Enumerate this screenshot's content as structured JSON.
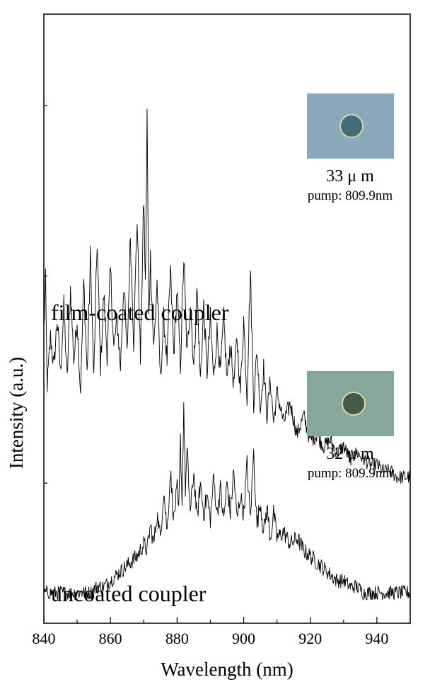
{
  "chart_data": {
    "type": "line",
    "xlabel": "Wavelength (nm)",
    "ylabel": "Intensity (a.u.)",
    "xlim": [
      840,
      950
    ],
    "xticks": [
      840,
      860,
      880,
      900,
      920,
      940
    ],
    "y_tick_labels_shown": false,
    "grid": false,
    "series": [
      {
        "name": "film-coated coupler",
        "inset": {
          "size": "33 μ m",
          "pump": "pump: 809.9nm",
          "microscope_color": "#8aa9bd",
          "disk_color": "#3f6f7a"
        },
        "points": [
          [
            840,
            0.48
          ],
          [
            840.5,
            0.56
          ],
          [
            841,
            0.39
          ],
          [
            842,
            0.47
          ],
          [
            843,
            0.42
          ],
          [
            844,
            0.5
          ],
          [
            845,
            0.41
          ],
          [
            846,
            0.52
          ],
          [
            847,
            0.4
          ],
          [
            848,
            0.55
          ],
          [
            849,
            0.43
          ],
          [
            850,
            0.5
          ],
          [
            851,
            0.38
          ],
          [
            852,
            0.56
          ],
          [
            853,
            0.41
          ],
          [
            854,
            0.6
          ],
          [
            855,
            0.4
          ],
          [
            856,
            0.63
          ],
          [
            857,
            0.42
          ],
          [
            858,
            0.54
          ],
          [
            859,
            0.44
          ],
          [
            860,
            0.58
          ],
          [
            861,
            0.45
          ],
          [
            862,
            0.5
          ],
          [
            863,
            0.42
          ],
          [
            864,
            0.56
          ],
          [
            865,
            0.44
          ],
          [
            866,
            0.64
          ],
          [
            867,
            0.46
          ],
          [
            868,
            0.67
          ],
          [
            869,
            0.43
          ],
          [
            870,
            0.7
          ],
          [
            870.5,
            0.55
          ],
          [
            871,
            0.83
          ],
          [
            871.5,
            0.5
          ],
          [
            872,
            0.6
          ],
          [
            873,
            0.45
          ],
          [
            874,
            0.56
          ],
          [
            875,
            0.4
          ],
          [
            876,
            0.5
          ],
          [
            877,
            0.43
          ],
          [
            878,
            0.58
          ],
          [
            879,
            0.44
          ],
          [
            880,
            0.55
          ],
          [
            881,
            0.42
          ],
          [
            882,
            0.6
          ],
          [
            883,
            0.44
          ],
          [
            884,
            0.53
          ],
          [
            885,
            0.42
          ],
          [
            886,
            0.55
          ],
          [
            887,
            0.4
          ],
          [
            888,
            0.52
          ],
          [
            889,
            0.41
          ],
          [
            890,
            0.5
          ],
          [
            891,
            0.4
          ],
          [
            892,
            0.48
          ],
          [
            893,
            0.41
          ],
          [
            894,
            0.5
          ],
          [
            895,
            0.4
          ],
          [
            896,
            0.46
          ],
          [
            897,
            0.39
          ],
          [
            898,
            0.47
          ],
          [
            899,
            0.38
          ],
          [
            900,
            0.5
          ],
          [
            901,
            0.37
          ],
          [
            902,
            0.58
          ],
          [
            903,
            0.36
          ],
          [
            904,
            0.45
          ],
          [
            905,
            0.35
          ],
          [
            906,
            0.42
          ],
          [
            907,
            0.34
          ],
          [
            908,
            0.4
          ],
          [
            909,
            0.33
          ],
          [
            910,
            0.38
          ],
          [
            912,
            0.33
          ],
          [
            914,
            0.36
          ],
          [
            916,
            0.31
          ],
          [
            918,
            0.34
          ],
          [
            920,
            0.3
          ],
          [
            922,
            0.31
          ],
          [
            924,
            0.29
          ],
          [
            926,
            0.3
          ],
          [
            928,
            0.28
          ],
          [
            930,
            0.29
          ],
          [
            932,
            0.27
          ],
          [
            934,
            0.28
          ],
          [
            936,
            0.27
          ],
          [
            938,
            0.26
          ],
          [
            940,
            0.26
          ],
          [
            942,
            0.25
          ],
          [
            944,
            0.25
          ],
          [
            946,
            0.24
          ],
          [
            948,
            0.24
          ],
          [
            950,
            0.24
          ]
        ]
      },
      {
        "name": "uncoated coupler",
        "inset": {
          "size": "32 μ m",
          "pump": "pump: 809.9nm",
          "microscope_color": "#86a89a",
          "disk_color": "#445a46"
        },
        "points": [
          [
            840,
            0.05
          ],
          [
            842,
            0.05
          ],
          [
            844,
            0.05
          ],
          [
            846,
            0.05
          ],
          [
            848,
            0.05
          ],
          [
            850,
            0.05
          ],
          [
            852,
            0.05
          ],
          [
            854,
            0.05
          ],
          [
            856,
            0.06
          ],
          [
            858,
            0.06
          ],
          [
            860,
            0.07
          ],
          [
            862,
            0.08
          ],
          [
            864,
            0.09
          ],
          [
            866,
            0.1
          ],
          [
            868,
            0.11
          ],
          [
            870,
            0.13
          ],
          [
            871,
            0.12
          ],
          [
            872,
            0.16
          ],
          [
            873,
            0.13
          ],
          [
            874,
            0.18
          ],
          [
            875,
            0.14
          ],
          [
            876,
            0.22
          ],
          [
            877,
            0.15
          ],
          [
            878,
            0.25
          ],
          [
            879,
            0.17
          ],
          [
            880,
            0.22
          ],
          [
            880.5,
            0.18
          ],
          [
            881,
            0.3
          ],
          [
            881.5,
            0.2
          ],
          [
            882,
            0.36
          ],
          [
            882.5,
            0.22
          ],
          [
            883,
            0.28
          ],
          [
            884,
            0.18
          ],
          [
            885,
            0.25
          ],
          [
            886,
            0.17
          ],
          [
            887,
            0.23
          ],
          [
            888,
            0.18
          ],
          [
            889,
            0.21
          ],
          [
            890,
            0.17
          ],
          [
            891,
            0.24
          ],
          [
            892,
            0.18
          ],
          [
            893,
            0.22
          ],
          [
            894,
            0.17
          ],
          [
            895,
            0.23
          ],
          [
            896,
            0.18
          ],
          [
            897,
            0.25
          ],
          [
            898,
            0.17
          ],
          [
            899,
            0.21
          ],
          [
            900,
            0.18
          ],
          [
            901,
            0.26
          ],
          [
            902,
            0.17
          ],
          [
            903,
            0.28
          ],
          [
            904,
            0.16
          ],
          [
            905,
            0.2
          ],
          [
            906,
            0.15
          ],
          [
            907,
            0.19
          ],
          [
            908,
            0.14
          ],
          [
            909,
            0.18
          ],
          [
            910,
            0.14
          ],
          [
            912,
            0.15
          ],
          [
            914,
            0.13
          ],
          [
            916,
            0.14
          ],
          [
            918,
            0.12
          ],
          [
            920,
            0.11
          ],
          [
            922,
            0.1
          ],
          [
            924,
            0.09
          ],
          [
            926,
            0.08
          ],
          [
            928,
            0.07
          ],
          [
            930,
            0.07
          ],
          [
            932,
            0.06
          ],
          [
            934,
            0.06
          ],
          [
            936,
            0.05
          ],
          [
            938,
            0.05
          ],
          [
            940,
            0.05
          ],
          [
            942,
            0.05
          ],
          [
            944,
            0.05
          ],
          [
            946,
            0.05
          ],
          [
            948,
            0.05
          ],
          [
            950,
            0.05
          ]
        ]
      }
    ]
  }
}
